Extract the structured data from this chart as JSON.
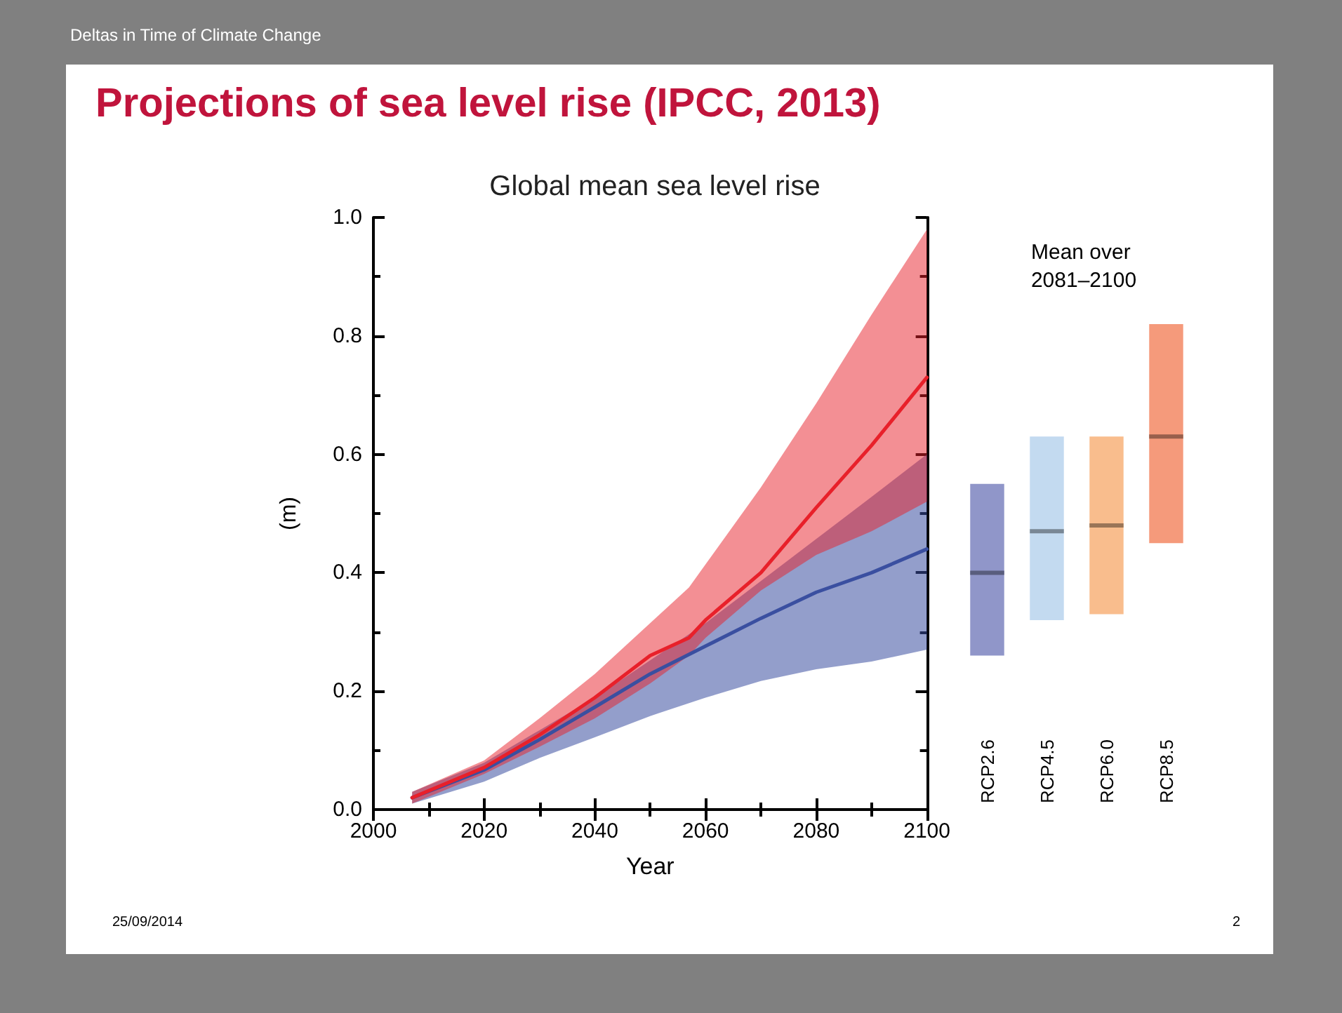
{
  "chart_data": [
    {
      "type": "line",
      "title": "Global mean sea level rise",
      "xlabel": "Year",
      "ylabel": "(m)",
      "annotations": [
        "Deltas in Time of Climate Change",
        "Projections of sea level rise (IPCC, 2013)",
        "25/09/2014",
        "2"
      ],
      "xlim": [
        2000,
        2100
      ],
      "xticks": [
        2000,
        2020,
        2040,
        2060,
        2080,
        2100
      ],
      "ylim": [
        0,
        1
      ],
      "yticks": [
        {
          "value": 0,
          "label": "0.0"
        },
        0.2,
        0.4,
        0.6,
        0.8,
        {
          "value": 1,
          "label": "1.0"
        }
      ],
      "grid": false,
      "line_style": "solid",
      "marker": "none",
      "series": [
        {
          "color": "#3a4fa0",
          "x": [
            2007,
            2020,
            2030,
            2040,
            2050,
            2060,
            2070,
            2080,
            2090,
            2100
          ],
          "values": [
            0.02,
            0.067,
            0.118,
            0.173,
            0.229,
            0.276,
            0.323,
            0.367,
            0.4,
            0.44
          ],
          "lower": [
            0.01,
            0.047,
            0.087,
            0.122,
            0.158,
            0.189,
            0.217,
            0.237,
            0.25,
            0.27
          ],
          "upper": [
            0.03,
            0.079,
            0.134,
            0.189,
            0.252,
            0.315,
            0.386,
            0.457,
            0.528,
            0.6
          ]
        },
        {
          "color": "#e8202a",
          "x": [
            2007,
            2020,
            2030,
            2040,
            2050,
            2057,
            2060,
            2070,
            2080,
            2090,
            2100
          ],
          "values": [
            0.02,
            0.071,
            0.126,
            0.189,
            0.26,
            0.29,
            0.32,
            0.4,
            0.51,
            0.615,
            0.73
          ],
          "lower": [
            0.01,
            0.06,
            0.106,
            0.154,
            0.213,
            0.26,
            0.29,
            0.37,
            0.43,
            0.47,
            0.52
          ],
          "upper": [
            0.03,
            0.083,
            0.154,
            0.229,
            0.315,
            0.375,
            0.414,
            0.544,
            0.686,
            0.836,
            0.98
          ]
        }
      ]
    },
    {
      "type": "box",
      "title": "Mean over 2081–2100",
      "categories": [
        "RCP2.6",
        "RCP4.5",
        "RCP6.0",
        "RCP8.5"
      ],
      "ylim": [
        0,
        1
      ],
      "tick_labels": "x",
      "colors": [
        "#9096c9",
        "#c3daf0",
        "#f9bd8d",
        "#f59a7b"
      ],
      "boxes": [
        {
          "low": 0.26,
          "q1": 0.26,
          "median": 0.4,
          "q3": 0.55,
          "high": 0.55
        },
        {
          "low": 0.32,
          "q1": 0.32,
          "median": 0.47,
          "q3": 0.63,
          "high": 0.63
        },
        {
          "low": 0.33,
          "q1": 0.33,
          "median": 0.48,
          "q3": 0.63,
          "high": 0.63
        },
        {
          "low": 0.45,
          "q1": 0.45,
          "median": 0.63,
          "q3": 0.82,
          "high": 0.82
        }
      ]
    }
  ]
}
